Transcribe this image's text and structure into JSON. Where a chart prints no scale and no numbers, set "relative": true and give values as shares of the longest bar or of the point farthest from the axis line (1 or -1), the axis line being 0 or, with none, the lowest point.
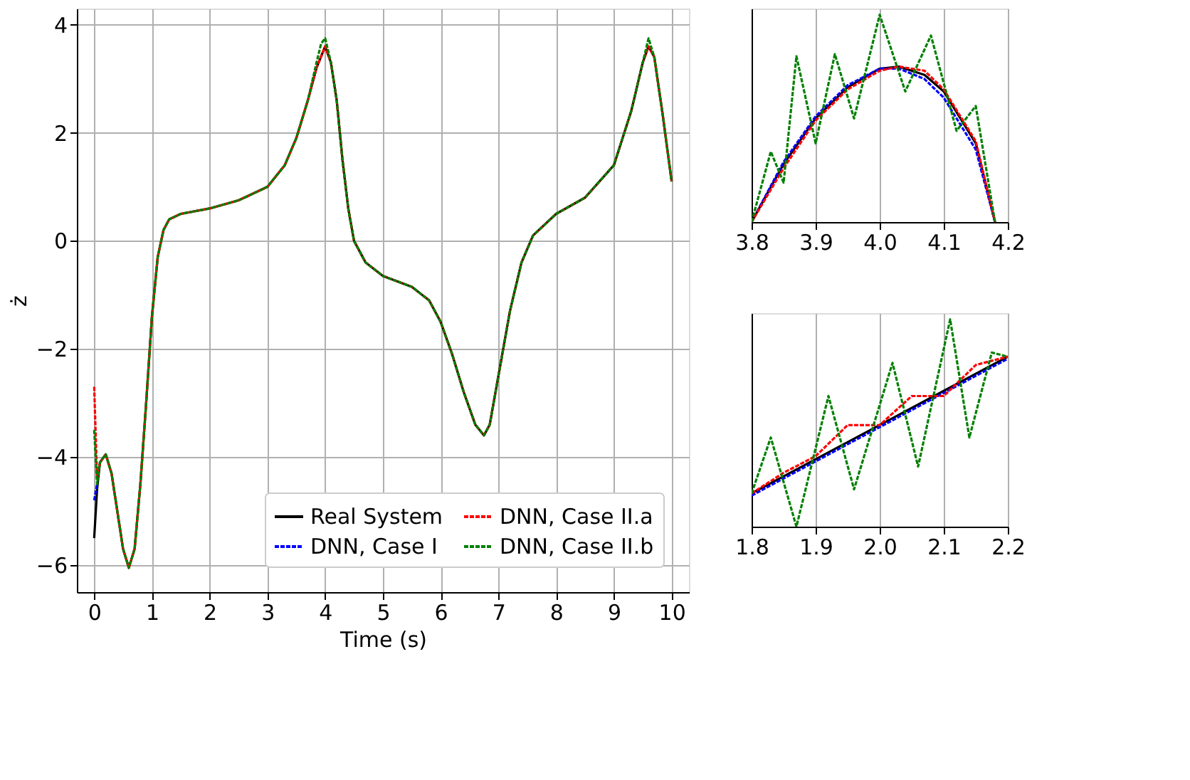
{
  "chart_data": [
    {
      "type": "line",
      "xlabel": "Time (s)",
      "ylabel": "ż",
      "xlim": [
        -0.3,
        10.3
      ],
      "ylim": [
        -6.5,
        4.3
      ],
      "xticks": [
        0,
        1,
        2,
        3,
        4,
        5,
        6,
        7,
        8,
        9,
        10
      ],
      "yticks": [
        {
          "value": -6,
          "label": "−6"
        },
        {
          "value": -4,
          "label": "−4"
        },
        {
          "value": -2,
          "label": "−2"
        },
        0,
        2,
        4
      ],
      "grid": true,
      "legend": "bottom right",
      "series": [
        {
          "name": "Real System",
          "color": "#000000",
          "line_style": "solid",
          "x": [
            0,
            0.05,
            0.1,
            0.2,
            0.3,
            0.4,
            0.5,
            0.6,
            0.7,
            0.8,
            0.9,
            1.0,
            1.1,
            1.2,
            1.3,
            1.5,
            2.0,
            2.5,
            3.0,
            3.3,
            3.5,
            3.7,
            3.85,
            4.0,
            4.1,
            4.2,
            4.3,
            4.4,
            4.5,
            4.7,
            5.0,
            5.5,
            5.8,
            6.0,
            6.2,
            6.4,
            6.6,
            6.75,
            6.85,
            7.0,
            7.2,
            7.4,
            7.6,
            8.0,
            8.5,
            9.0,
            9.3,
            9.5,
            9.6,
            9.7,
            9.85,
            10
          ],
          "values": [
            -5.5,
            -4.6,
            -4.1,
            -3.95,
            -4.3,
            -5.0,
            -5.7,
            -6.05,
            -5.7,
            -4.5,
            -3.0,
            -1.4,
            -0.3,
            0.2,
            0.4,
            0.5,
            0.6,
            0.75,
            1.0,
            1.4,
            1.9,
            2.6,
            3.2,
            3.6,
            3.3,
            2.6,
            1.5,
            0.6,
            0.0,
            -0.4,
            -0.65,
            -0.85,
            -1.1,
            -1.5,
            -2.1,
            -2.8,
            -3.4,
            -3.6,
            -3.4,
            -2.5,
            -1.3,
            -0.4,
            0.1,
            0.5,
            0.8,
            1.4,
            2.4,
            3.3,
            3.6,
            3.4,
            2.3,
            1.1
          ]
        },
        {
          "name": "DNN, Case I",
          "color": "#0000ff",
          "line_style": "dashed",
          "x": [
            0,
            0.05
          ],
          "values": [
            -4.8,
            -4.5
          ]
        },
        {
          "name": "DNN, Case II.a",
          "color": "#ff0000",
          "line_style": "dashed",
          "x": [
            0,
            0.05,
            0.1,
            0.2,
            0.3,
            0.4,
            0.5,
            0.6,
            0.7,
            0.8,
            0.9,
            1.0,
            1.1,
            1.2,
            1.3,
            1.5,
            2.0,
            2.5,
            3.0,
            3.3,
            3.5,
            3.7,
            3.85,
            4.0,
            4.1,
            4.2,
            4.3,
            4.4,
            4.5,
            4.7,
            5.0,
            5.5,
            5.8,
            6.0,
            6.2,
            6.4,
            6.6,
            6.75,
            6.85,
            7.0,
            7.2,
            7.4,
            7.6,
            8.0,
            8.5,
            9.0,
            9.3,
            9.5,
            9.6,
            9.7,
            9.85,
            10
          ],
          "values": [
            -2.7,
            -4.4,
            -4.1,
            -3.95,
            -4.3,
            -5.0,
            -5.7,
            -6.05,
            -5.7,
            -4.5,
            -3.0,
            -1.4,
            -0.3,
            0.2,
            0.4,
            0.5,
            0.6,
            0.75,
            1.0,
            1.4,
            1.9,
            2.6,
            3.2,
            3.6,
            3.3,
            2.6,
            1.5,
            0.6,
            0.0,
            -0.4,
            -0.65,
            -0.85,
            -1.1,
            -1.5,
            -2.1,
            -2.8,
            -3.4,
            -3.6,
            -3.4,
            -2.5,
            -1.3,
            -0.4,
            0.1,
            0.5,
            0.8,
            1.4,
            2.4,
            3.3,
            3.6,
            3.4,
            2.3,
            1.1
          ]
        },
        {
          "name": "DNN, Case II.b",
          "color": "#008000",
          "line_style": "dashed",
          "x": [
            0,
            0.05,
            0.1,
            0.2,
            0.3,
            0.4,
            0.5,
            0.6,
            0.7,
            0.8,
            0.9,
            1.0,
            1.1,
            1.2,
            1.3,
            1.5,
            2.0,
            2.5,
            3.0,
            3.3,
            3.5,
            3.7,
            3.85,
            3.93,
            4.0,
            4.1,
            4.2,
            4.3,
            4.4,
            4.5,
            4.7,
            5.0,
            5.5,
            5.8,
            6.0,
            6.2,
            6.4,
            6.6,
            6.75,
            6.85,
            7.0,
            7.2,
            7.4,
            7.6,
            8.0,
            8.5,
            9.0,
            9.3,
            9.5,
            9.6,
            9.7,
            9.85,
            10
          ],
          "values": [
            -3.5,
            -4.5,
            -4.1,
            -3.95,
            -4.3,
            -5.0,
            -5.7,
            -6.05,
            -5.7,
            -4.5,
            -3.0,
            -1.4,
            -0.3,
            0.2,
            0.4,
            0.5,
            0.6,
            0.75,
            1.0,
            1.4,
            1.9,
            2.6,
            3.3,
            3.65,
            3.75,
            3.3,
            2.6,
            1.5,
            0.6,
            0.0,
            -0.4,
            -0.65,
            -0.85,
            -1.1,
            -1.5,
            -2.1,
            -2.8,
            -3.4,
            -3.6,
            -3.4,
            -2.5,
            -1.3,
            -0.4,
            0.1,
            0.5,
            0.8,
            1.4,
            2.4,
            3.3,
            3.75,
            3.4,
            2.3,
            1.1
          ]
        }
      ]
    },
    {
      "type": "line",
      "relative": true,
      "xlim": [
        3.8,
        4.2
      ],
      "xticks": [
        3.8,
        3.9,
        {
          "value": 4.0,
          "label": "4.0"
        },
        4.1,
        4.2
      ],
      "tick_labels": "x",
      "grid": "x",
      "series": [
        {
          "color": "#000000",
          "line_style": "solid",
          "x": [
            3.8,
            3.85,
            3.9,
            3.95,
            4.0,
            4.03,
            4.07,
            4.1,
            4.15,
            4.18
          ],
          "values": [
            0,
            0.28,
            0.5,
            0.65,
            0.74,
            0.75,
            0.71,
            0.63,
            0.38,
            0
          ]
        },
        {
          "color": "#0000ff",
          "line_style": "dashed",
          "x": [
            3.8,
            3.85,
            3.9,
            3.95,
            4.0,
            4.03,
            4.07,
            4.1,
            4.15,
            4.18
          ],
          "values": [
            0,
            0.29,
            0.51,
            0.66,
            0.74,
            0.74,
            0.69,
            0.6,
            0.35,
            0
          ]
        },
        {
          "color": "#ff0000",
          "line_style": "dashed",
          "x": [
            3.8,
            3.85,
            3.9,
            3.95,
            4.0,
            4.03,
            4.07,
            4.1,
            4.15,
            4.18
          ],
          "values": [
            0,
            0.26,
            0.49,
            0.64,
            0.73,
            0.75,
            0.73,
            0.64,
            0.39,
            0
          ]
        },
        {
          "color": "#008000",
          "line_style": "dashed",
          "x": [
            3.8,
            3.83,
            3.85,
            3.87,
            3.9,
            3.93,
            3.96,
            4.0,
            4.04,
            4.08,
            4.12,
            4.15,
            4.18
          ],
          "values": [
            0,
            0.34,
            0.19,
            0.8,
            0.38,
            0.81,
            0.5,
            1,
            0.63,
            0.9,
            0.44,
            0.56,
            0
          ]
        }
      ]
    },
    {
      "type": "line",
      "relative": true,
      "xlim": [
        1.8,
        2.2
      ],
      "xticks": [
        1.8,
        1.9,
        {
          "value": 2.0,
          "label": "2.0"
        },
        2.1,
        2.2
      ],
      "tick_labels": "x",
      "grid": "x",
      "series": [
        {
          "color": "#000000",
          "line_style": "solid",
          "x": [
            1.8,
            2.2
          ],
          "values": [
            0.16,
            0.82
          ]
        },
        {
          "color": "#0000ff",
          "line_style": "dashed",
          "x": [
            1.8,
            2.2
          ],
          "values": [
            0.15,
            0.81
          ]
        },
        {
          "color": "#ff0000",
          "line_style": "dashed",
          "x": [
            1.8,
            1.85,
            1.9,
            1.95,
            2.0,
            2.05,
            2.1,
            2.15,
            2.2
          ],
          "values": [
            0.16,
            0.26,
            0.34,
            0.49,
            0.49,
            0.63,
            0.63,
            0.78,
            0.82
          ]
        },
        {
          "color": "#008000",
          "line_style": "dashed",
          "x": [
            1.8,
            1.83,
            1.87,
            1.92,
            1.96,
            2.02,
            2.06,
            2.11,
            2.14,
            2.175,
            2.2
          ],
          "values": [
            0.16,
            0.43,
            0,
            0.63,
            0.18,
            0.79,
            0.29,
            1,
            0.43,
            0.84,
            0.82
          ]
        }
      ]
    }
  ]
}
